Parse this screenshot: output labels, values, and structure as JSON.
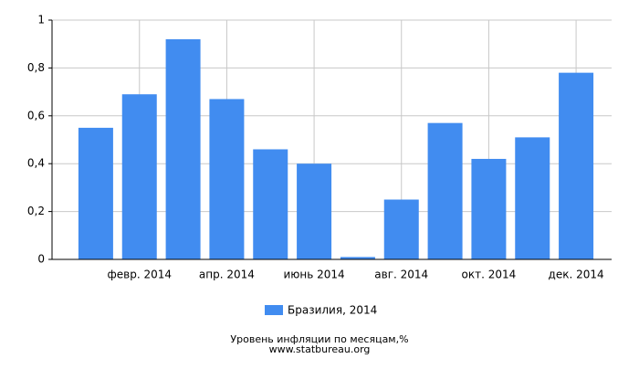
{
  "chart_data": {
    "type": "bar",
    "title": "Уровень инфляции по месяцам,%",
    "subtitle": "www.statbureau.org",
    "categories": [
      null,
      "февр. 2014",
      null,
      "апр. 2014",
      null,
      "июнь 2014",
      null,
      "авг. 2014",
      null,
      "окт. 2014",
      null,
      "дек. 2014"
    ],
    "series": [
      {
        "name": "Бразилия, 2014",
        "color": "#418cf0",
        "values": [
          0.55,
          0.69,
          0.92,
          0.67,
          0.46,
          0.4,
          0.01,
          0.25,
          0.57,
          0.42,
          0.51,
          0.78
        ]
      }
    ],
    "ylim": [
      0,
      1
    ],
    "yticks": [
      0,
      {
        "value": 0.2,
        "label": "0,2"
      },
      {
        "value": 0.4,
        "label": "0,4"
      },
      {
        "value": 0.6,
        "label": "0,6"
      },
      {
        "value": 0.8,
        "label": "0,8"
      },
      1
    ],
    "grid": true
  }
}
